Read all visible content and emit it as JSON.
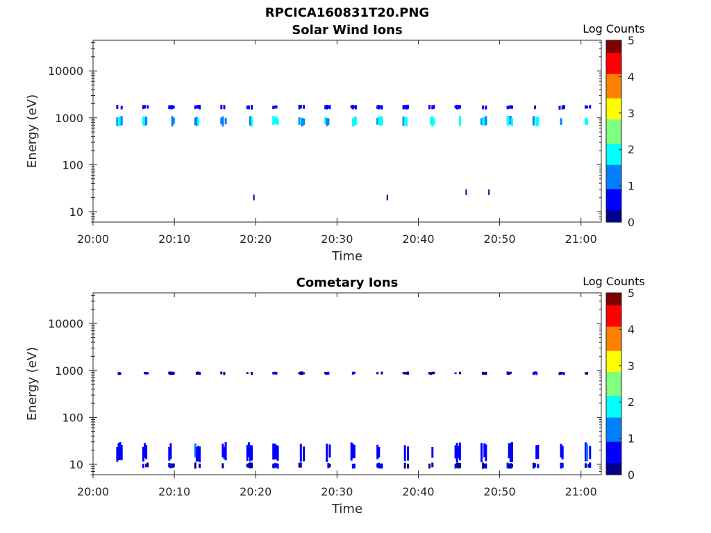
{
  "figure_title": "RPCICA160831T20.PNG",
  "colors": {
    "background": "#ffffff",
    "axis": "#262626",
    "colormap": [
      "#00008f",
      "#0000ff",
      "#0080ff",
      "#00ffff",
      "#80ff80",
      "#ffff00",
      "#ff8000",
      "#ff0000",
      "#800000"
    ]
  },
  "chart_data": [
    {
      "type": "heatmap",
      "title": "Solar Wind Ions",
      "xlabel": "Time",
      "ylabel": "Energy (eV)",
      "x_ticks": [
        "20:00",
        "20:10",
        "20:20",
        "20:30",
        "20:40",
        "20:50",
        "21:00"
      ],
      "x_tick_minutes": [
        0,
        10,
        20,
        30,
        40,
        50,
        60
      ],
      "xlim_minutes": [
        0,
        62.5
      ],
      "y_scale": "log",
      "y_ticks": [
        "10",
        "100",
        "1000",
        "10000"
      ],
      "y_tick_values": [
        10,
        100,
        1000,
        10000
      ],
      "ylim": [
        6,
        45000
      ],
      "colorbar": {
        "label": "Log Counts",
        "ticks": [
          "0",
          "1",
          "2",
          "3",
          "4",
          "5"
        ],
        "range": [
          0,
          5
        ]
      },
      "sweep_minutes": [
        3.2,
        6.4,
        9.6,
        12.8,
        16.0,
        19.2,
        22.4,
        25.6,
        28.8,
        32.0,
        35.2,
        38.4,
        41.6,
        44.8,
        48.0,
        51.2,
        54.4,
        57.6,
        60.8
      ],
      "bands": [
        {
          "energy_min": 650,
          "energy_max": 1100,
          "log_counts": 1.6
        },
        {
          "energy_min": 1500,
          "energy_max": 1900,
          "log_counts": 0.6
        }
      ],
      "isolated_points": [
        {
          "minute": 19.7,
          "energy": 20,
          "log_counts": 0.3
        },
        {
          "minute": 36.1,
          "energy": 20,
          "log_counts": 0.3
        },
        {
          "minute": 45.8,
          "energy": 26,
          "log_counts": 0.3
        },
        {
          "minute": 48.6,
          "energy": 26,
          "log_counts": 0.3
        }
      ]
    },
    {
      "type": "heatmap",
      "title": "Cometary Ions",
      "xlabel": "Time",
      "ylabel": "Energy (eV)",
      "x_ticks": [
        "20:00",
        "20:10",
        "20:20",
        "20:30",
        "20:40",
        "20:50",
        "21:00"
      ],
      "x_tick_minutes": [
        0,
        10,
        20,
        30,
        40,
        50,
        60
      ],
      "xlim_minutes": [
        0,
        62.5
      ],
      "y_scale": "log",
      "y_ticks": [
        "10",
        "100",
        "1000",
        "10000"
      ],
      "y_tick_values": [
        10,
        100,
        1000,
        10000
      ],
      "ylim": [
        6,
        45000
      ],
      "colorbar": {
        "label": "Log Counts",
        "ticks": [
          "0",
          "1",
          "2",
          "3",
          "4",
          "5"
        ],
        "range": [
          0,
          5
        ]
      },
      "sweep_minutes": [
        3.2,
        6.4,
        9.6,
        12.8,
        16.0,
        19.2,
        22.4,
        25.6,
        28.8,
        32.0,
        35.2,
        38.4,
        41.6,
        44.8,
        48.0,
        51.2,
        54.4,
        57.6,
        60.8
      ],
      "bands": [
        {
          "energy_min": 800,
          "energy_max": 950,
          "log_counts": 0.2
        },
        {
          "energy_min": 11,
          "energy_max": 30,
          "log_counts": 0.7
        },
        {
          "energy_min": 8,
          "energy_max": 11,
          "log_counts": 0.3
        }
      ],
      "isolated_points": []
    }
  ]
}
